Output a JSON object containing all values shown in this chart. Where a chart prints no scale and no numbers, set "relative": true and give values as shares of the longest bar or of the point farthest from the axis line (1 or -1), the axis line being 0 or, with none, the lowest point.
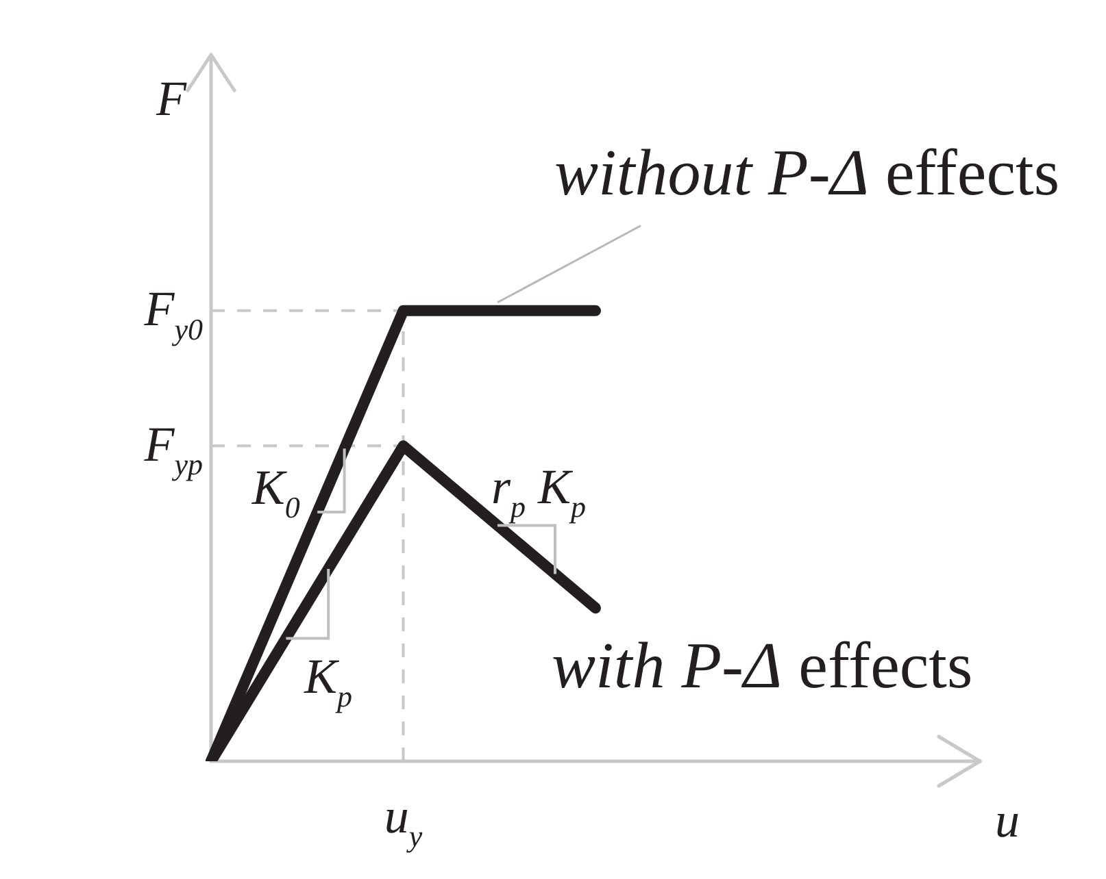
{
  "chart_data": {
    "type": "line",
    "relative": true,
    "xlabel": "u",
    "ylabel": "F",
    "marker": "none",
    "line_style": "solid",
    "categories": [
      null,
      null,
      null,
      null,
      null
    ],
    "series": [
      {
        "name": "without P-Δ effects",
        "color": "#231f20",
        "values": [
          0,
          1,
          1,
          null,
          null
        ]
      },
      {
        "name": "with P-Δ effects",
        "color": "#231f20",
        "values": [
          0,
          0.7,
          0.34,
          null,
          null
        ]
      }
    ],
    "ref_lines": [
      {
        "axis": "y",
        "value": 1,
        "label": "F$_{y0}$",
        "line_style": "dashed",
        "color": "#c8c8c8"
      },
      {
        "axis": "y",
        "value": 0.7,
        "label": "F$_{yp}$",
        "line_style": "dashed",
        "color": "#c8c8c8"
      }
    ],
    "annotations": [
      "u$_{y}$",
      "K$_{0}$",
      "K$_{p}$",
      "r$_{p}$ K$_{p}$"
    ]
  }
}
